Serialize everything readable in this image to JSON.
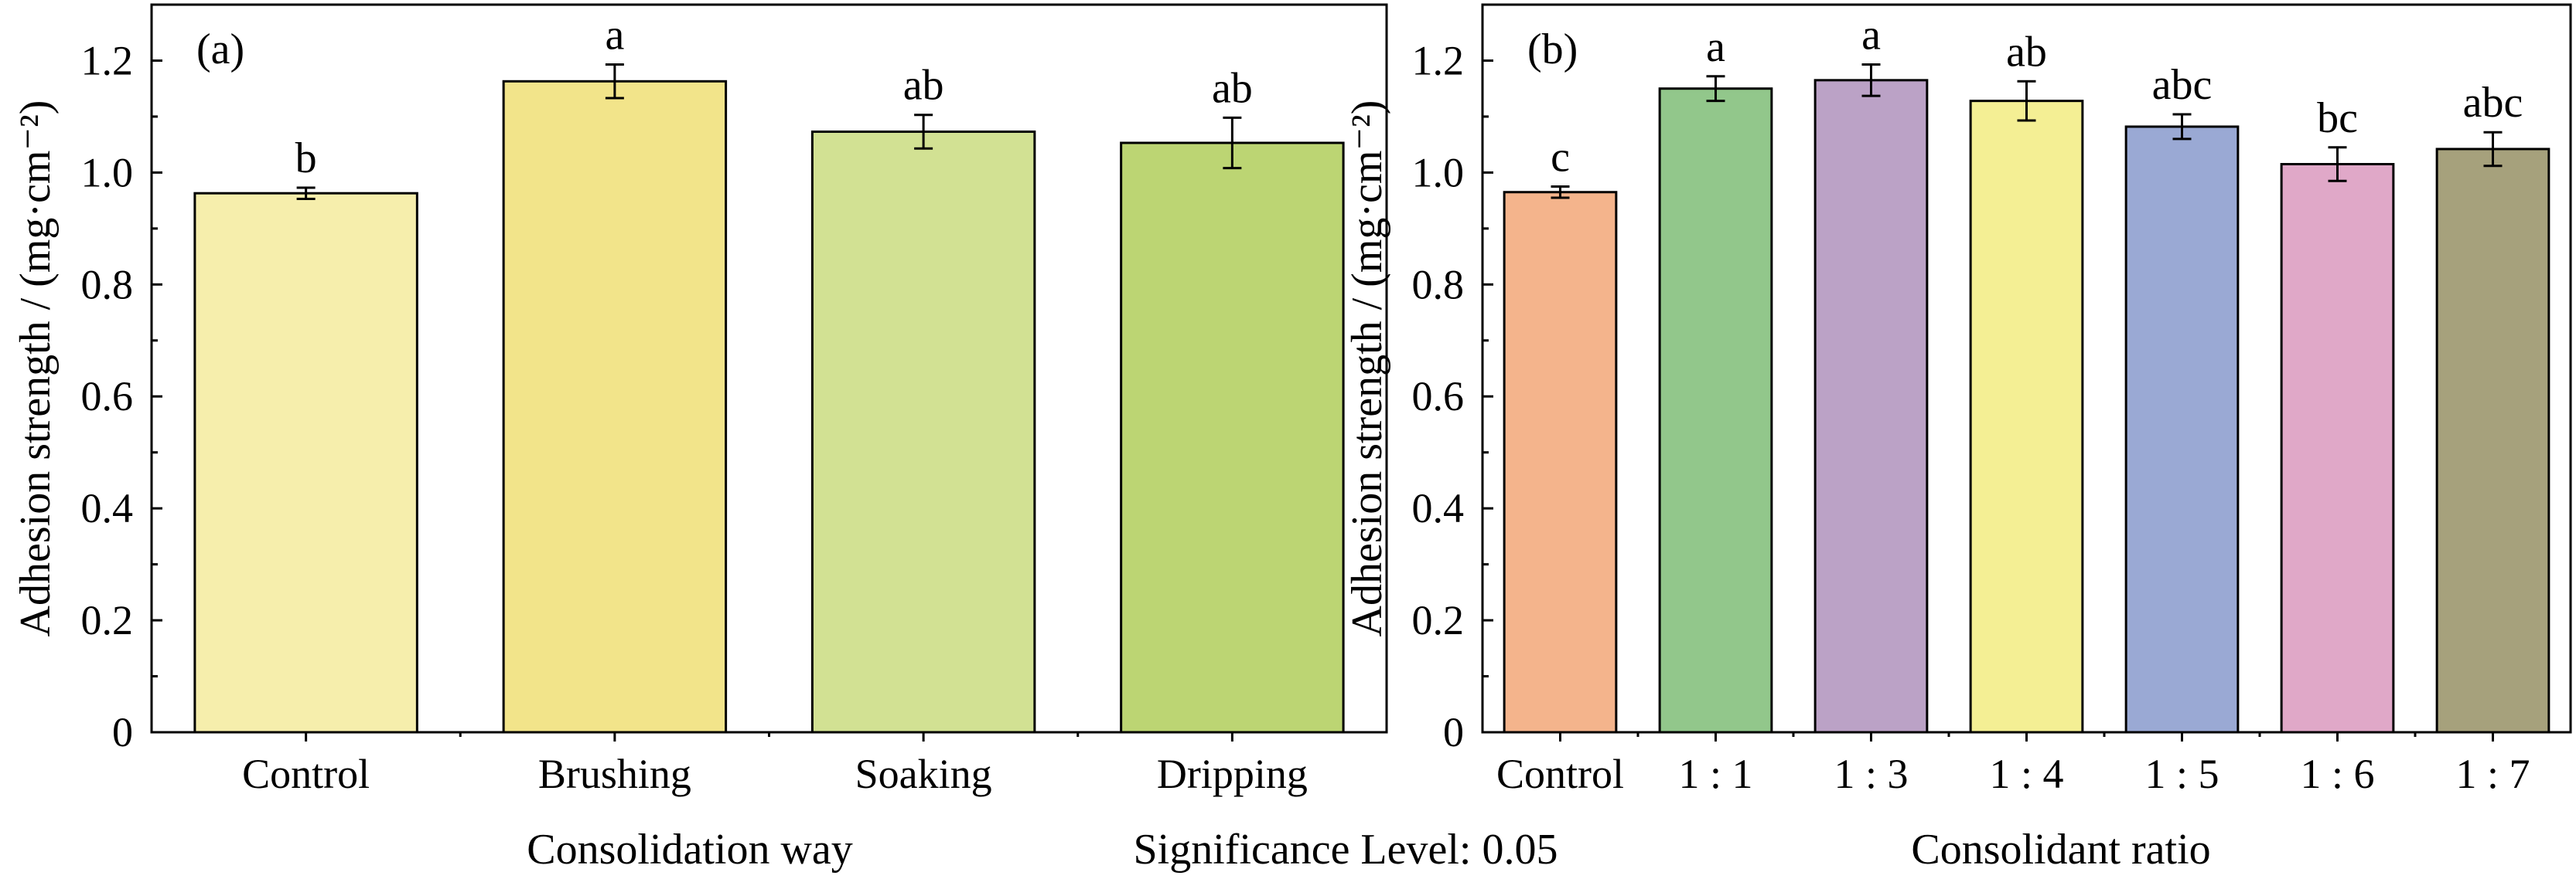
{
  "chart_data": [
    {
      "type": "bar",
      "panel_label": "(a)",
      "xlabel": "Consolidation way",
      "ylabel": "Adhesion strength / (mg·cm⁻²)",
      "ylim": [
        0,
        1.3
      ],
      "yticks": [
        "0",
        "0.2",
        "0.4",
        "0.6",
        "0.8",
        "1.0",
        "1.2"
      ],
      "ytick_values": [
        0,
        0.2,
        0.4,
        0.6,
        0.8,
        1.0,
        1.2
      ],
      "categories": [
        "Control",
        "Brushing",
        "Soaking",
        "Dripping"
      ],
      "values": [
        0.963,
        1.163,
        1.073,
        1.053
      ],
      "errors": [
        0.01,
        0.03,
        0.03,
        0.045
      ],
      "significance": [
        "b",
        "a",
        "ab",
        "ab"
      ],
      "colors": [
        "#f6eeac",
        "#f2e48a",
        "#d2e193",
        "#bcd573"
      ],
      "grid": false
    },
    {
      "type": "bar",
      "panel_label": "(b)",
      "xlabel": "Consolidant ratio",
      "ylabel": "Adhesion strength / (mg·cm⁻²)",
      "ylim": [
        0,
        1.3
      ],
      "yticks": [
        "0",
        "0.2",
        "0.4",
        "0.6",
        "0.8",
        "1.0",
        "1.2"
      ],
      "ytick_values": [
        0,
        0.2,
        0.4,
        0.6,
        0.8,
        1.0,
        1.2
      ],
      "categories": [
        "Control",
        "1 : 1",
        "1 : 3",
        "1 : 4",
        "1 : 5",
        "1 : 6",
        "1 : 7"
      ],
      "values": [
        0.965,
        1.15,
        1.165,
        1.128,
        1.082,
        1.015,
        1.042
      ],
      "errors": [
        0.01,
        0.022,
        0.028,
        0.035,
        0.022,
        0.03,
        0.03
      ],
      "significance": [
        "c",
        "a",
        "a",
        "ab",
        "abc",
        "bc",
        "abc"
      ],
      "colors": [
        "#f4b48c",
        "#92c78b",
        "#bba2c6",
        "#f4ef94",
        "#9aa9d4",
        "#e0a8c8",
        "#a6a17c"
      ],
      "grid": false
    }
  ],
  "footer": {
    "significance_text": "Significance Level: 0.05"
  }
}
